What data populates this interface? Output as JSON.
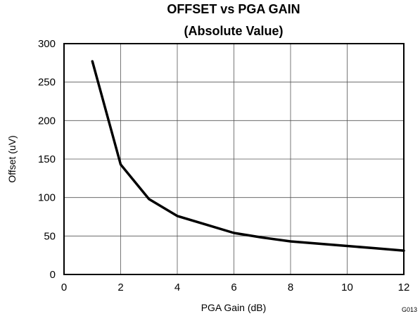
{
  "chart_data": {
    "type": "line",
    "title": "OFFSET vs PGA GAIN",
    "subtitle": "(Absolute Value)",
    "xlabel": "PGA Gain (dB)",
    "ylabel": "Offset (uV)",
    "xlim": [
      0,
      12
    ],
    "ylim": [
      0,
      300
    ],
    "xticks": [
      "0",
      "2",
      "4",
      "6",
      "8",
      "10",
      "12"
    ],
    "yticks": [
      "0",
      "50",
      "100",
      "150",
      "200",
      "250",
      "300"
    ],
    "grid": true,
    "code": "G013",
    "series": [
      {
        "x": [
          1,
          2,
          3,
          4,
          5,
          6,
          7,
          8,
          9,
          10,
          11,
          12
        ],
        "values": [
          277,
          143,
          98,
          76,
          65,
          54,
          48,
          43,
          40,
          37,
          34,
          31
        ]
      }
    ]
  }
}
